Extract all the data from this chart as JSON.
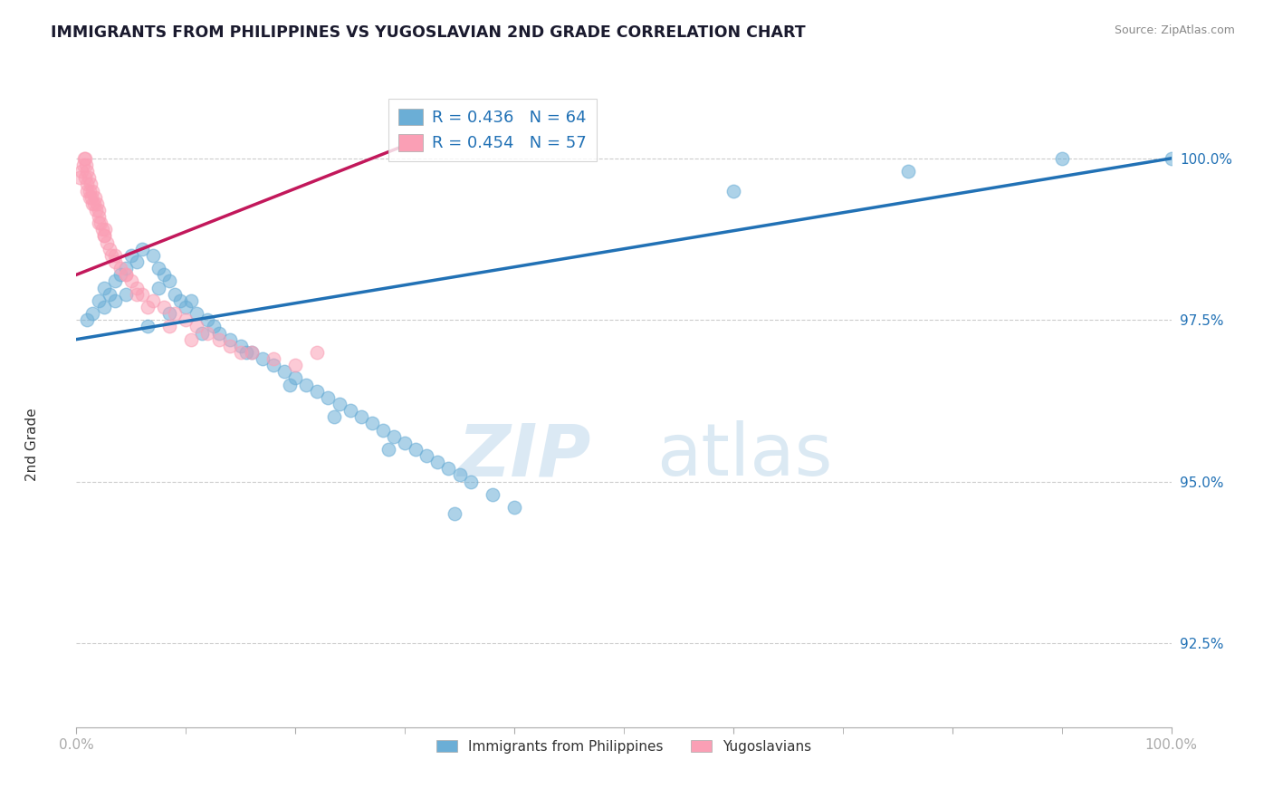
{
  "title": "IMMIGRANTS FROM PHILIPPINES VS YUGOSLAVIAN 2ND GRADE CORRELATION CHART",
  "source": "Source: ZipAtlas.com",
  "ylabel": "2nd Grade",
  "y_ticks": [
    92.5,
    95.0,
    97.5,
    100.0
  ],
  "y_tick_labels": [
    "92.5%",
    "95.0%",
    "97.5%",
    "100.0%"
  ],
  "xlim": [
    0.0,
    100.0
  ],
  "ylim": [
    91.2,
    101.2
  ],
  "blue_R": 0.436,
  "blue_N": 64,
  "pink_R": 0.454,
  "pink_N": 57,
  "blue_color": "#6baed6",
  "pink_color": "#fa9fb5",
  "blue_line_color": "#2171b5",
  "pink_line_color": "#c2185b",
  "legend_blue_label": "Immigrants from Philippines",
  "legend_pink_label": "Yugoslavians",
  "watermark_zip": "ZIP",
  "watermark_atlas": "atlas",
  "blue_line_x": [
    0,
    100
  ],
  "blue_line_y": [
    97.2,
    100.0
  ],
  "pink_line_x": [
    0,
    30
  ],
  "pink_line_y": [
    98.2,
    100.2
  ],
  "blue_x": [
    1.0,
    1.5,
    2.0,
    2.5,
    3.0,
    3.5,
    4.0,
    4.5,
    5.0,
    5.5,
    6.0,
    7.0,
    7.5,
    8.0,
    8.5,
    9.0,
    9.5,
    10.0,
    10.5,
    11.0,
    12.0,
    12.5,
    13.0,
    14.0,
    15.0,
    16.0,
    17.0,
    18.0,
    19.0,
    20.0,
    21.0,
    22.0,
    23.0,
    24.0,
    25.0,
    26.0,
    27.0,
    28.0,
    29.0,
    30.0,
    31.0,
    32.0,
    33.0,
    34.0,
    35.0,
    36.0,
    38.0,
    40.0,
    6.5,
    11.5,
    15.5,
    19.5,
    23.5,
    28.5,
    34.5,
    7.5,
    4.5,
    3.5,
    2.5,
    8.5,
    100.0,
    90.0,
    76.0,
    60.0
  ],
  "blue_y": [
    97.5,
    97.6,
    97.8,
    98.0,
    97.9,
    98.1,
    98.2,
    98.3,
    98.5,
    98.4,
    98.6,
    98.5,
    98.3,
    98.2,
    98.1,
    97.9,
    97.8,
    97.7,
    97.8,
    97.6,
    97.5,
    97.4,
    97.3,
    97.2,
    97.1,
    97.0,
    96.9,
    96.8,
    96.7,
    96.6,
    96.5,
    96.4,
    96.3,
    96.2,
    96.1,
    96.0,
    95.9,
    95.8,
    95.7,
    95.6,
    95.5,
    95.4,
    95.3,
    95.2,
    95.1,
    95.0,
    94.8,
    94.6,
    97.4,
    97.3,
    97.0,
    96.5,
    96.0,
    95.5,
    94.5,
    98.0,
    97.9,
    97.8,
    97.7,
    97.6,
    100.0,
    100.0,
    99.8,
    99.5
  ],
  "pink_x": [
    0.3,
    0.5,
    0.6,
    0.7,
    0.8,
    0.9,
    1.0,
    1.0,
    1.1,
    1.2,
    1.3,
    1.4,
    1.5,
    1.6,
    1.7,
    1.8,
    1.9,
    2.0,
    2.0,
    2.2,
    2.4,
    2.5,
    2.6,
    2.8,
    3.0,
    3.2,
    3.5,
    4.0,
    4.5,
    5.0,
    5.5,
    6.0,
    7.0,
    8.0,
    9.0,
    10.0,
    11.0,
    12.0,
    13.0,
    14.0,
    16.0,
    18.0,
    20.0,
    22.0,
    1.5,
    2.0,
    1.0,
    0.8,
    1.2,
    2.5,
    3.5,
    4.5,
    5.5,
    6.5,
    8.5,
    10.5,
    15.0
  ],
  "pink_y": [
    99.7,
    99.8,
    99.9,
    100.0,
    100.0,
    99.9,
    99.8,
    99.6,
    99.7,
    99.5,
    99.6,
    99.4,
    99.5,
    99.3,
    99.4,
    99.2,
    99.3,
    99.1,
    99.2,
    99.0,
    98.9,
    98.8,
    98.9,
    98.7,
    98.6,
    98.5,
    98.4,
    98.3,
    98.2,
    98.1,
    98.0,
    97.9,
    97.8,
    97.7,
    97.6,
    97.5,
    97.4,
    97.3,
    97.2,
    97.1,
    97.0,
    96.9,
    96.8,
    97.0,
    99.3,
    99.0,
    99.5,
    99.7,
    99.4,
    98.8,
    98.5,
    98.2,
    97.9,
    97.7,
    97.4,
    97.2,
    97.0
  ]
}
